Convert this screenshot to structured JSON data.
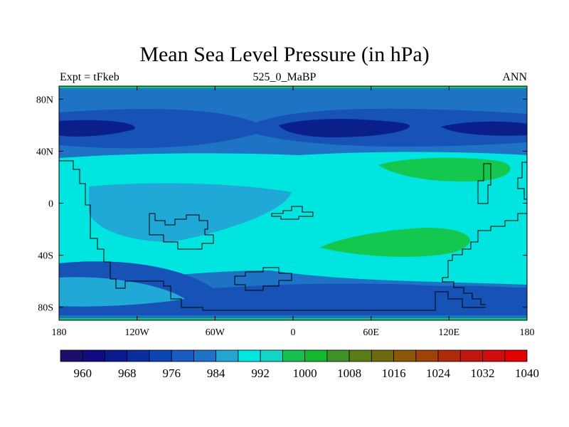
{
  "title": "Mean Sea Level Pressure (in hPa)",
  "left_string": "Expt = tFkeb",
  "center_string": "525_0_MaBP",
  "right_string": "ANN",
  "lat_labels": [
    "80N",
    "40N",
    "0",
    "40S",
    "80S"
  ],
  "lon_labels": [
    "180",
    "120W",
    "60W",
    "0",
    "60E",
    "120E",
    "180"
  ],
  "colorbar": {
    "colors": [
      "#1b0f6b",
      "#120a80",
      "#0a1a8f",
      "#0a2ea0",
      "#0d45b3",
      "#1a5cc0",
      "#1f72c8",
      "#24a6d4",
      "#00e6e0",
      "#14d4c6",
      "#18c050",
      "#11b830",
      "#3f8f2a",
      "#5a7d18",
      "#6f6a10",
      "#8a5808",
      "#a0400a",
      "#b02a0c",
      "#c01810",
      "#d00c10",
      "#e00000"
    ],
    "labels": [
      "960",
      "968",
      "976",
      "984",
      "992",
      "1000",
      "1008",
      "1016",
      "1024",
      "1032",
      "1040"
    ]
  },
  "map_colors": {
    "deep_low": "#0a1f8a",
    "low": "#1753b6",
    "mid_low": "#1f73c4",
    "mid": "#20a8d6",
    "high": "#00e5e0",
    "highest": "#14c84f",
    "border": "#10c870"
  }
}
